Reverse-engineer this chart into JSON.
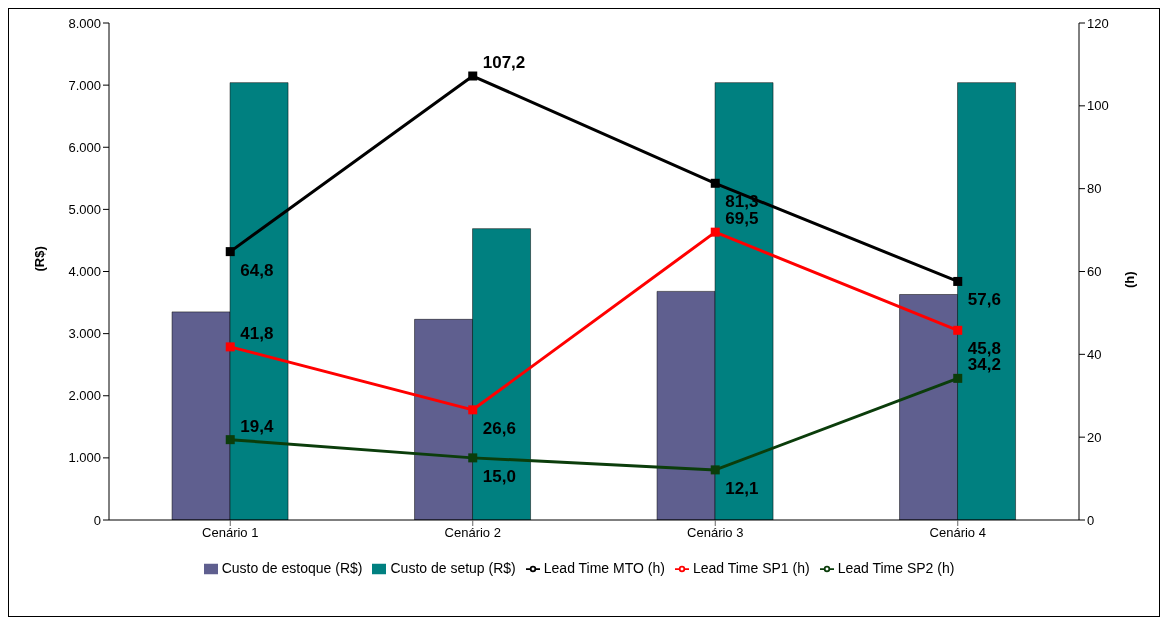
{
  "chart_data": {
    "type": "bar",
    "ylabel": "(R$)",
    "y2label": "(h)",
    "categories": [
      "Cenário 1",
      "Cenário 2",
      "Cenário 3",
      "Cenário 4"
    ],
    "series": [
      {
        "name": "Custo de estoque (R$)",
        "color": "#5f5f8f",
        "values": [
          3350,
          3230,
          3680,
          3630
        ]
      },
      {
        "name": "Custo de setup (R$)",
        "color": "#008080",
        "values": [
          7040,
          4690,
          7040,
          7040
        ]
      },
      {
        "name": "Lead Time MTO (h)",
        "type": "line",
        "axis": "y2",
        "color": "#000000",
        "values": [
          64.8,
          107.2,
          81.3,
          57.6
        ],
        "value_labels": [
          "64,8",
          "107,2",
          "81,3",
          "57,6"
        ]
      },
      {
        "name": "Lead Time SP1 (h)",
        "type": "line",
        "axis": "y2",
        "color": "#ff0000",
        "values": [
          41.8,
          26.6,
          69.5,
          45.8
        ],
        "value_labels": [
          "41,8",
          "26,6",
          "69,5",
          "45,8"
        ]
      },
      {
        "name": "Lead Time SP2 (h)",
        "type": "line",
        "axis": "y2",
        "color": "#0b3d0b",
        "values": [
          19.4,
          15.0,
          12.1,
          34.2
        ],
        "value_labels": [
          "19,4",
          "15,0",
          "12,1",
          "34,2"
        ]
      }
    ],
    "ylim": [
      0,
      8000
    ],
    "yticks": [
      {
        "value": 0,
        "label": "0"
      },
      {
        "value": 1000,
        "label": "1.000"
      },
      {
        "value": 2000,
        "label": "2.000"
      },
      {
        "value": 3000,
        "label": "3.000"
      },
      {
        "value": 4000,
        "label": "4.000"
      },
      {
        "value": 5000,
        "label": "5.000"
      },
      {
        "value": 6000,
        "label": "6.000"
      },
      {
        "value": 7000,
        "label": "7.000"
      },
      {
        "value": 8000,
        "label": "8.000"
      }
    ],
    "y2lim": [
      0,
      120
    ],
    "y2ticks": [
      0,
      20,
      40,
      60,
      80,
      100,
      120
    ],
    "marker": "square",
    "line_style": "solid",
    "legend": "bottom"
  }
}
